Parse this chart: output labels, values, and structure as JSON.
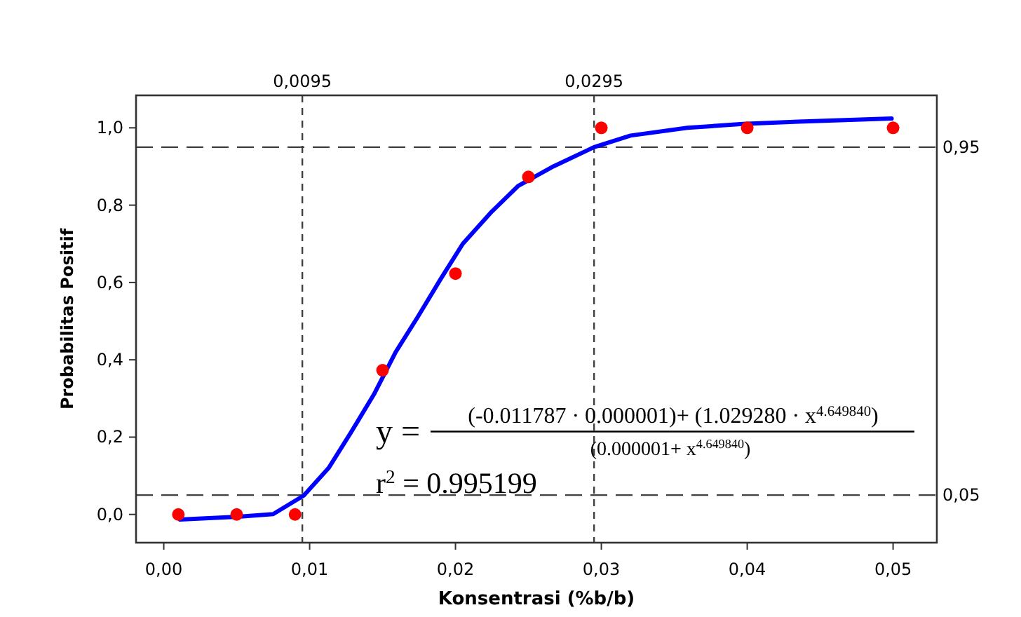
{
  "chart_data": {
    "type": "scatter",
    "xlabel": "Konsentrasi (%b/b)",
    "ylabel": "Probabilitas Positif",
    "xlim": [
      -0.0019,
      0.053
    ],
    "ylim": [
      -0.073,
      1.084
    ],
    "xticks": [
      {
        "value": 0,
        "label": "0,00"
      },
      {
        "value": 0.01,
        "label": "0,01"
      },
      {
        "value": 0.02,
        "label": "0,02"
      },
      {
        "value": 0.03,
        "label": "0,03"
      },
      {
        "value": 0.04,
        "label": "0,04"
      },
      {
        "value": 0.05,
        "label": "0,05"
      }
    ],
    "yticks": [
      {
        "value": 0,
        "label": "0,0"
      },
      {
        "value": 0.2,
        "label": "0,2"
      },
      {
        "value": 0.4,
        "label": "0,4"
      },
      {
        "value": 0.6,
        "label": "0,6"
      },
      {
        "value": 0.8,
        "label": "0,8"
      },
      {
        "value": 1,
        "label": "1,0"
      }
    ],
    "x2lim": [
      -0.0019,
      0.053
    ],
    "x2ticks": [
      {
        "value": 0.0095,
        "label": "0,0095"
      },
      {
        "value": 0.0295,
        "label": "0,0295"
      }
    ],
    "y2lim": [
      -0.073,
      1.084
    ],
    "y2ticks": [
      {
        "value": 0.05,
        "label": "0,05"
      },
      {
        "value": 0.95,
        "label": "0,95"
      }
    ],
    "ref_lines": [
      {
        "axis": "x",
        "value": 0.0095,
        "color": "#404040",
        "line_style": "dashed"
      },
      {
        "axis": "x",
        "value": 0.0295,
        "color": "#404040",
        "line_style": "dashed"
      },
      {
        "axis": "y",
        "value": 0.05,
        "color": "#404040",
        "line_style": "dashed"
      },
      {
        "axis": "y",
        "value": 0.95,
        "color": "#404040",
        "line_style": "dashed"
      }
    ],
    "series": [
      {
        "type": "line",
        "color": "#0000ff",
        "marker": "none",
        "line_style": "solid",
        "x": [
          0.0011,
          0.0051,
          0.0075,
          0.0096,
          0.0113,
          0.0128,
          0.0144,
          0.0159,
          0.0174,
          0.019,
          0.0205,
          0.0224,
          0.0243,
          0.0267,
          0.0295,
          0.032,
          0.0359,
          0.0397,
          0.0435,
          0.0499
        ],
        "values": [
          -0.013,
          -0.006,
          0.001,
          0.049,
          0.12,
          0.21,
          0.31,
          0.42,
          0.51,
          0.61,
          0.7,
          0.78,
          0.85,
          0.9,
          0.95,
          0.98,
          1.0,
          1.01,
          1.016,
          1.024
        ]
      },
      {
        "color": "#ff0000",
        "marker": "circle",
        "x": [
          0.001,
          0.005,
          0.009,
          0.015,
          0.02,
          0.025,
          0.03,
          0.04,
          0.05
        ],
        "values": [
          0,
          0,
          0,
          0.373,
          0.623,
          0.873,
          1.0,
          1.0,
          1.0
        ]
      }
    ],
    "annotations": [
      "y =",
      "(-0.011787 · 0.000001)+ (1.029280 · x$^{4.649840}$)",
      "(0.000001+ x$^{4.649840}$)",
      "r$^{2}$ = 0.995199"
    ],
    "grid": false
  }
}
